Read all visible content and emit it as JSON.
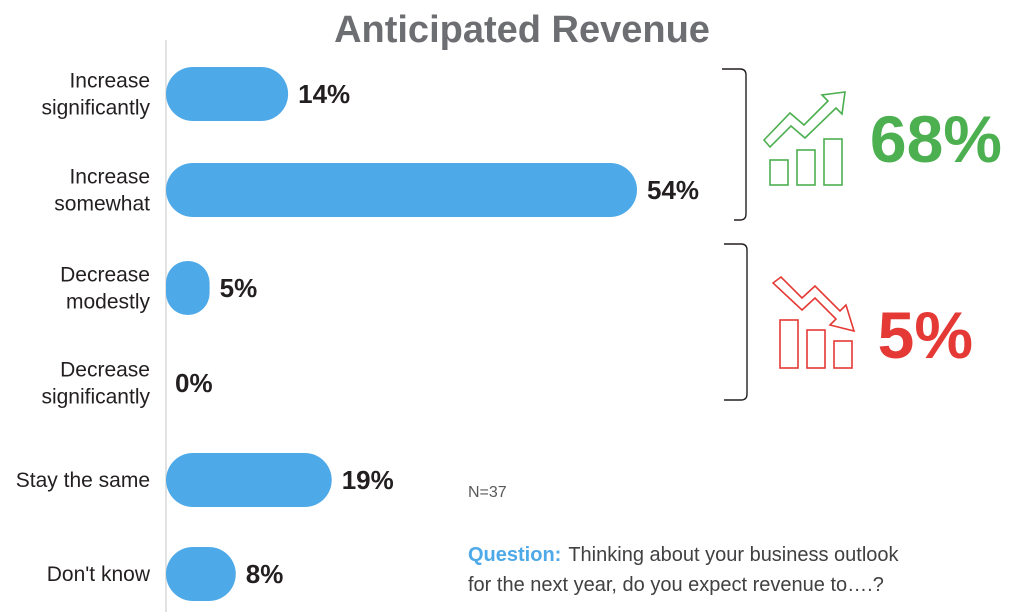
{
  "chart_data": {
    "type": "bar",
    "orientation": "horizontal",
    "title": "Anticipated Revenue",
    "categories": [
      [
        "Increase",
        "significantly"
      ],
      [
        "Increase",
        "somewhat"
      ],
      [
        "Decrease",
        "modestly"
      ],
      [
        "Decrease",
        "significantly"
      ],
      [
        "Stay the same"
      ],
      [
        "Don't know"
      ]
    ],
    "values": [
      14,
      54,
      5,
      0,
      19,
      8
    ],
    "value_labels": [
      "14%",
      "54%",
      "5%",
      "0%",
      "19%",
      "8%"
    ],
    "xlim": [
      0,
      54
    ],
    "grid": false,
    "bar_color": "#4ea9e8",
    "summaries": [
      {
        "value": "68%",
        "color": "#4caf50",
        "icon": "trend-up-bars-icon",
        "groups": [
          0,
          1
        ]
      },
      {
        "value": "5%",
        "color": "#e53935",
        "icon": "trend-down-bars-icon",
        "groups": [
          2,
          3
        ]
      }
    ]
  },
  "sample_size": "N=37",
  "question": {
    "label": "Question:",
    "label_color": "#4ea9e8",
    "line1": "Thinking about your business outlook",
    "line2": "for the next year, do you expect revenue to….?"
  }
}
